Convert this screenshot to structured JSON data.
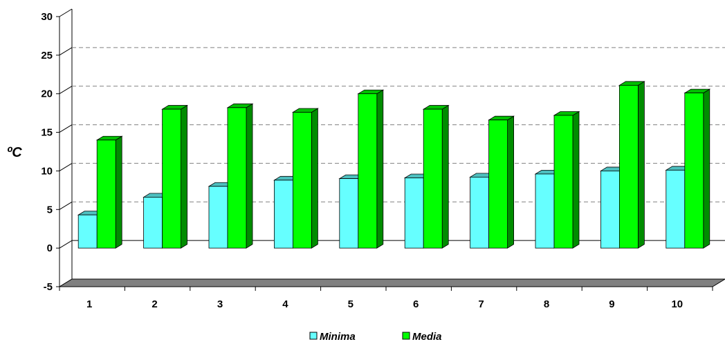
{
  "chart_data": {
    "type": "bar",
    "title": "",
    "xlabel": "",
    "ylabel": "ºC",
    "categories": [
      "1",
      "2",
      "3",
      "4",
      "5",
      "6",
      "7",
      "8",
      "9",
      "10"
    ],
    "series": [
      {
        "name": "Minima",
        "values": [
          4.3,
          6.6,
          8.0,
          8.8,
          9.0,
          9.1,
          9.2,
          9.6,
          10.0,
          10.1
        ],
        "color": "#66FFFF"
      },
      {
        "name": "Media",
        "values": [
          14.0,
          18.0,
          18.2,
          17.6,
          20.0,
          18.0,
          16.6,
          17.2,
          21.1,
          20.1
        ],
        "color": "#00FF00"
      }
    ],
    "ylim": [
      -5,
      30
    ],
    "yticks": [
      -5,
      0,
      5,
      10,
      15,
      20,
      25,
      30
    ],
    "grid": true,
    "legend_position": "bottom",
    "style": "3d-clustered-column",
    "floor_color": "#808080"
  }
}
